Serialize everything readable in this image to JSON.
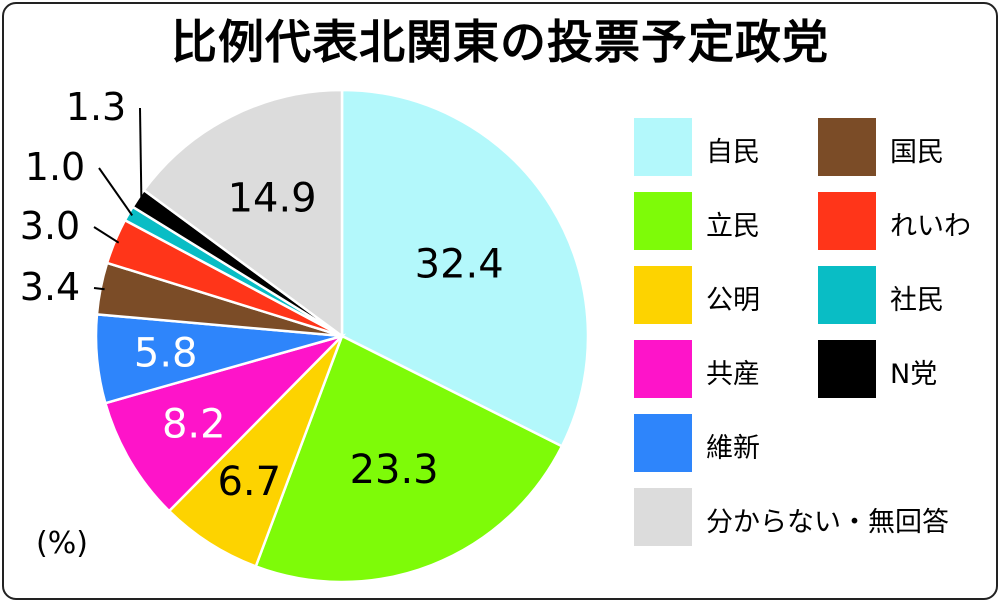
{
  "title": "比例代表北関東の投票予定政党",
  "unit_label": "(%)",
  "chart_data": {
    "type": "pie",
    "title": "比例代表北関東の投票予定政党",
    "unit": "%",
    "slices": [
      {
        "label": "自民",
        "value": 32.4,
        "display": "32.4",
        "color": "#b3f8fb"
      },
      {
        "label": "立民",
        "value": 23.3,
        "display": "23.3",
        "color": "#7efb08"
      },
      {
        "label": "公明",
        "value": 6.7,
        "display": "6.7",
        "color": "#fdd300"
      },
      {
        "label": "共産",
        "value": 8.2,
        "display": "8.2",
        "color": "#fe14c9"
      },
      {
        "label": "維新",
        "value": 5.8,
        "display": "5.8",
        "color": "#2e85fb"
      },
      {
        "label": "国民",
        "value": 3.4,
        "display": "3.4",
        "color": "#7b4c27"
      },
      {
        "label": "れいわ",
        "value": 3.0,
        "display": "3.0",
        "color": "#ff3519"
      },
      {
        "label": "社民",
        "value": 1.0,
        "display": "1.0",
        "color": "#09bdc5"
      },
      {
        "label": "N党",
        "value": 1.3,
        "display": "1.3",
        "color": "#000000"
      },
      {
        "label": "分からない・無回答",
        "value": 14.9,
        "display": "14.9",
        "color": "#dcdcdc"
      }
    ],
    "start_angle": "12 o'clock",
    "direction": "clockwise",
    "legend_position": "right"
  },
  "legend": [
    {
      "label": "自民",
      "color": "#b3f8fb"
    },
    {
      "label": "国民",
      "color": "#7b4c27"
    },
    {
      "label": "立民",
      "color": "#7efb08"
    },
    {
      "label": "れいわ",
      "color": "#ff3519"
    },
    {
      "label": "公明",
      "color": "#fdd300"
    },
    {
      "label": "社民",
      "color": "#09bdc5"
    },
    {
      "label": "共産",
      "color": "#fe14c9"
    },
    {
      "label": "N党",
      "color": "#000000"
    },
    {
      "label": "維新",
      "color": "#2e85fb"
    },
    {
      "label": "分からない・無回答",
      "color": "#dcdcdc"
    }
  ]
}
